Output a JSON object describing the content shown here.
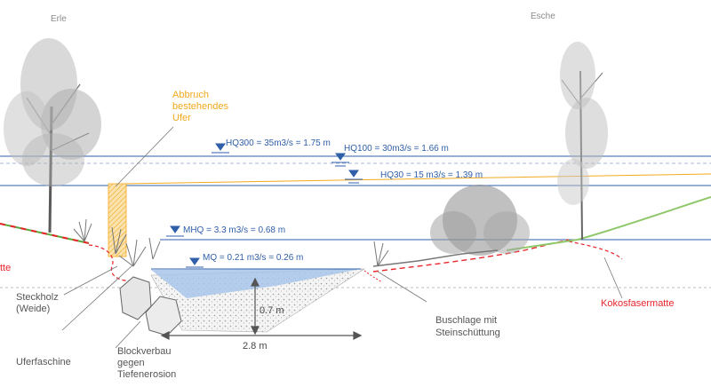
{
  "colors": {
    "water_line": "#2f5fa8",
    "water_fill": "#a9c6ea",
    "demolition": "#f2a91d",
    "coir_mat": "#e8242a",
    "meadow": "#8fc86a",
    "text": "#555555"
  },
  "trees": {
    "left": "Erle",
    "right": "Esche"
  },
  "water_levels": {
    "hq300": "HQ300 = 35m3/s = 1.75 m",
    "hq100": "HQ100 = 30m3/s = 1.66 m",
    "hq30": "HQ30 = 15 m3/s = 1.39 m",
    "mhq": "MHQ = 3.3 m3/s = 0.68 m",
    "mq": "MQ = 0.21 m3/s = 0.26 m"
  },
  "annotations": {
    "demolition": [
      "Abbruch",
      "bestehendes",
      "Ufer"
    ],
    "cutting": [
      "Steckholz",
      "(Weide)"
    ],
    "fascine": "Uferfaschine",
    "block": [
      "Blockverbau",
      "gegen",
      "Tiefenerosion"
    ],
    "bush": [
      "Buschlage mit",
      "Steinschüttung"
    ],
    "coir_right": "Kokosfasermatte",
    "coir_left_partial": "tte"
  },
  "dimensions": {
    "depth": "0.7 m",
    "width": "2.8 m"
  }
}
